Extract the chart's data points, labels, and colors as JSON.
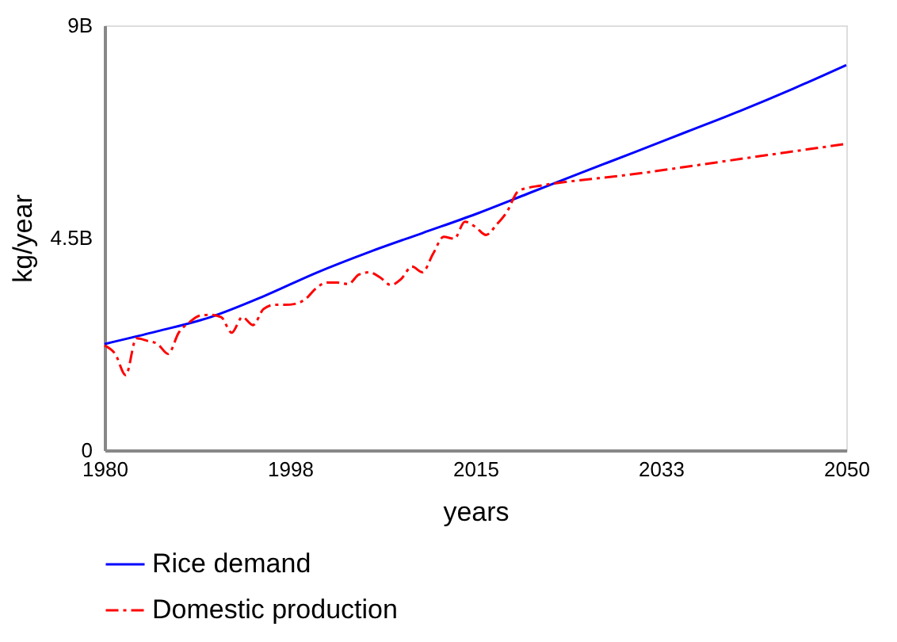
{
  "chart_data": {
    "type": "line",
    "xlabel": "years",
    "ylabel": "kg/year",
    "xlim": [
      1980,
      2050
    ],
    "ylim": [
      0,
      9000000000
    ],
    "xticks": [
      1980,
      {
        "value": 1997.5,
        "label": "1998"
      },
      2015,
      {
        "value": 2032.5,
        "label": "2033"
      },
      2050
    ],
    "yticks": [
      {
        "value": 0,
        "label": "0"
      },
      {
        "value": 4500000000,
        "label": "4.5B"
      },
      {
        "value": 9000000000,
        "label": "9B"
      }
    ],
    "grid": false,
    "legend": "bottom",
    "marker": "none",
    "series": [
      {
        "name": "Rice demand",
        "color": "#0000ff",
        "line_style": "solid",
        "x": [
          1980,
          1985,
          1990,
          1995,
          2000,
          2005,
          2010,
          2015,
          2020,
          2025,
          2030,
          2035,
          2040,
          2045,
          2050
        ],
        "values": [
          2250000000,
          2520000000,
          2820000000,
          3260000000,
          3760000000,
          4200000000,
          4600000000,
          5000000000,
          5440000000,
          5880000000,
          6310000000,
          6750000000,
          7190000000,
          7660000000,
          8160000000
        ]
      },
      {
        "name": "Domestic production",
        "color": "#ff0000",
        "line_style": "dashed",
        "x": [
          1980,
          1981,
          1982,
          1983,
          1984,
          1985,
          1986,
          1987,
          1988,
          1989,
          1990,
          1991,
          1992,
          1993,
          1994,
          1995,
          1996,
          1997,
          1998,
          1999,
          2000,
          2001,
          2002,
          2003,
          2004,
          2005,
          2006,
          2007,
          2008,
          2009,
          2010,
          2011,
          2012,
          2013,
          2014,
          2015,
          2016,
          2017,
          2018,
          2019,
          2020,
          2021,
          2030,
          2040,
          2050
        ],
        "values": [
          2220000000,
          2040000000,
          1590000000,
          2370000000,
          2320000000,
          2250000000,
          2040000000,
          2490000000,
          2710000000,
          2850000000,
          2870000000,
          2820000000,
          2490000000,
          2820000000,
          2650000000,
          2990000000,
          3080000000,
          3080000000,
          3100000000,
          3210000000,
          3440000000,
          3550000000,
          3550000000,
          3520000000,
          3720000000,
          3770000000,
          3660000000,
          3500000000,
          3630000000,
          3890000000,
          3770000000,
          4160000000,
          4520000000,
          4480000000,
          4840000000,
          4730000000,
          4560000000,
          4780000000,
          5060000000,
          5480000000,
          5560000000,
          5600000000,
          5850000000,
          6170000000,
          6490000000
        ]
      }
    ]
  }
}
